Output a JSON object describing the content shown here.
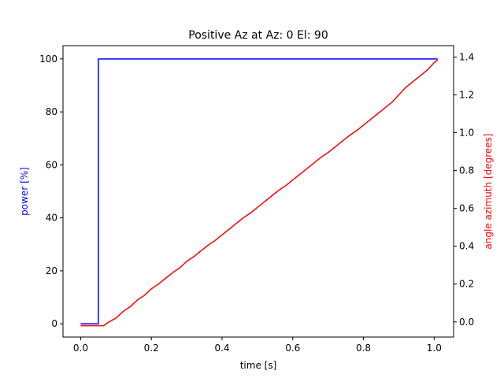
{
  "chart_data": {
    "type": "line",
    "title": "Positive Az at Az: 0 El: 90",
    "xlabel": "time [s]",
    "ylabel_left": "power [%]",
    "ylabel_right": "angle azimuth [degrees]",
    "xlim": [
      -0.05,
      1.055
    ],
    "ylim_left": [
      -5,
      105
    ],
    "ylim_right": [
      -0.08,
      1.46
    ],
    "x_ticks": [
      0.0,
      0.2,
      0.4,
      0.6,
      0.8,
      1.0
    ],
    "x_tick_labels": [
      "0.0",
      "0.2",
      "0.4",
      "0.6",
      "0.8",
      "1.0"
    ],
    "y_left_ticks": [
      0,
      20,
      40,
      60,
      80,
      100
    ],
    "y_left_tick_labels": [
      "0",
      "20",
      "40",
      "60",
      "80",
      "100"
    ],
    "y_right_ticks": [
      0.0,
      0.2,
      0.4,
      0.6,
      0.8,
      1.0,
      1.2,
      1.4
    ],
    "y_right_tick_labels": [
      "0.0",
      "0.2",
      "0.4",
      "0.6",
      "0.8",
      "1.0",
      "1.2",
      "1.4"
    ],
    "grid": false,
    "colors": {
      "power": "#0000ff",
      "angle": "#ff0000",
      "axis": "#000000"
    },
    "series": [
      {
        "axis": "left",
        "color": "#0000ff",
        "x": [
          0.0,
          0.05,
          0.05,
          1.01
        ],
        "y": [
          0,
          0,
          100,
          100
        ]
      },
      {
        "axis": "right",
        "color": "#ff0000",
        "x": [
          0.0,
          0.02,
          0.04,
          0.065,
          0.08,
          0.1,
          0.12,
          0.14,
          0.16,
          0.18,
          0.2,
          0.22,
          0.24,
          0.26,
          0.28,
          0.3,
          0.32,
          0.34,
          0.36,
          0.38,
          0.4,
          0.42,
          0.44,
          0.46,
          0.48,
          0.5,
          0.52,
          0.54,
          0.56,
          0.58,
          0.6,
          0.62,
          0.64,
          0.66,
          0.68,
          0.7,
          0.72,
          0.74,
          0.76,
          0.78,
          0.8,
          0.82,
          0.84,
          0.86,
          0.88,
          0.9,
          0.92,
          0.94,
          0.96,
          0.98,
          1.0,
          1.01
        ],
        "y": [
          -0.02,
          -0.02,
          -0.02,
          -0.02,
          0.0,
          0.02,
          0.055,
          0.08,
          0.115,
          0.14,
          0.175,
          0.2,
          0.23,
          0.26,
          0.285,
          0.32,
          0.345,
          0.375,
          0.405,
          0.43,
          0.46,
          0.49,
          0.52,
          0.55,
          0.575,
          0.605,
          0.635,
          0.665,
          0.695,
          0.72,
          0.75,
          0.78,
          0.81,
          0.84,
          0.87,
          0.895,
          0.925,
          0.955,
          0.985,
          1.01,
          1.04,
          1.07,
          1.1,
          1.13,
          1.16,
          1.2,
          1.24,
          1.27,
          1.3,
          1.33,
          1.37,
          1.385
        ]
      }
    ]
  }
}
